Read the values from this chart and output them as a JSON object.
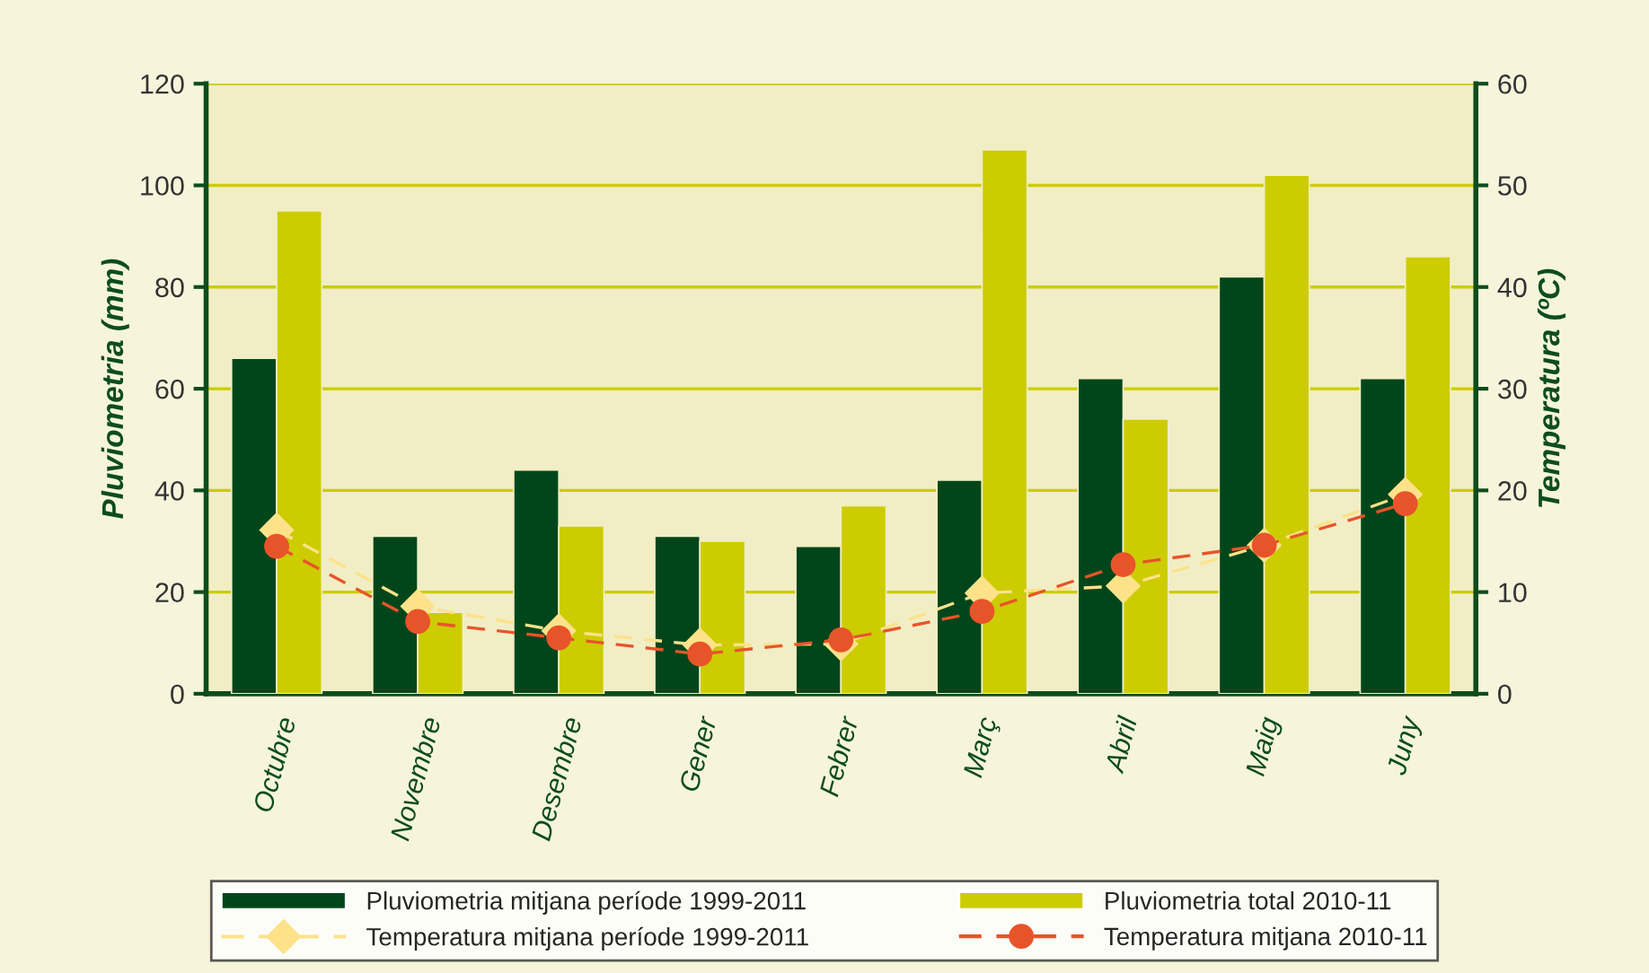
{
  "chart_data": {
    "type": "bar",
    "ylabel": "Pluviometria (mm)",
    "y2label": "Temperatura (ºC)",
    "categories": [
      "Octubre",
      "Novembre",
      "Desembre",
      "Gener",
      "Febrer",
      "Març",
      "Abril",
      "Maig",
      "Juny"
    ],
    "series": [
      {
        "name": "Pluviometria mitjana període 1999-2011",
        "color": "#00461a",
        "values": [
          66,
          31,
          44,
          31,
          29,
          42,
          62,
          82,
          62
        ]
      },
      {
        "name": "Pluviometria total 2010-11",
        "color": "#cccc00",
        "values": [
          95,
          16,
          33,
          30,
          37,
          107,
          54,
          102,
          86
        ]
      },
      {
        "name": "Temperatura mitjana període 1999-2011",
        "type": "line",
        "axis": "y2",
        "color": "#fde28a",
        "marker": "diamond",
        "line_style": "dashed",
        "values": [
          16.1,
          8.6,
          6.2,
          4.8,
          4.9,
          9.9,
          10.6,
          14.6,
          19.6
        ]
      },
      {
        "name": "Temperatura mitjana 2010-11",
        "type": "line",
        "axis": "y2",
        "color": "#e8542a",
        "marker": "circle",
        "line_style": "dashed",
        "values": [
          14.5,
          7.1,
          5.5,
          3.9,
          5.3,
          8.1,
          12.7,
          14.6,
          18.7
        ]
      }
    ],
    "ylim": [
      0,
      120
    ],
    "yticks": [
      0,
      20,
      40,
      60,
      80,
      100,
      120
    ],
    "y2lim": [
      0,
      60
    ],
    "y2ticks": [
      0,
      10,
      20,
      30,
      40,
      50,
      60
    ],
    "grid": "y",
    "legend": "bottom"
  }
}
